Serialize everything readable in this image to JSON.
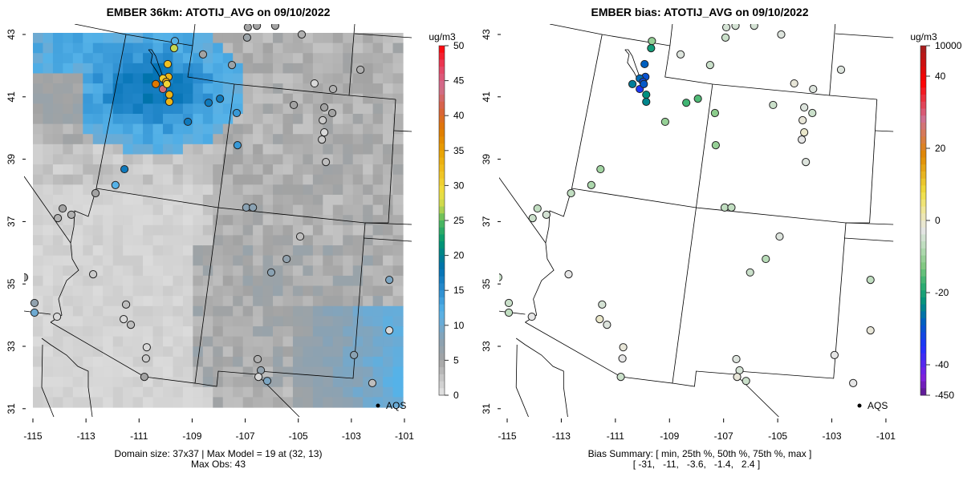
{
  "chart_data": [
    {
      "type": "heatmap",
      "title": "EMBER 36km: ATOTIJ_AVG on 09/10/2022",
      "x_ticks": [
        "-115",
        "-113",
        "-111",
        "-109",
        "-107",
        "-105",
        "-103",
        "-101"
      ],
      "y_ticks": [
        "43",
        "41",
        "39",
        "37",
        "35",
        "33",
        "31"
      ],
      "xlim": [
        -115.3,
        -100.5
      ],
      "ylim": [
        30.7,
        43.3
      ],
      "colorbar": {
        "units": "ug/m3",
        "ticks": [
          "50",
          "45",
          "40",
          "35",
          "30",
          "25",
          "20",
          "15",
          "10",
          "5",
          "0"
        ],
        "range": [
          0,
          50
        ]
      },
      "legend": {
        "label": "AQS",
        "placement": "bottom-right"
      },
      "footer": [
        "Domain size: 37x37 | Max Model = 19 at (32, 13)",
        "Max Obs: 43"
      ],
      "grid_size": [
        37,
        37
      ]
    },
    {
      "type": "scatter",
      "title": "EMBER bias: ATOTIJ_AVG on 09/10/2022",
      "x_ticks": [
        "-115",
        "-113",
        "-111",
        "-109",
        "-107",
        "-105",
        "-103",
        "-101"
      ],
      "y_ticks": [
        "43",
        "41",
        "39",
        "37",
        "35",
        "33",
        "31"
      ],
      "colorbar": {
        "units": "ug/m3",
        "ticks": [
          "10000",
          "40",
          "20",
          "0",
          "-20",
          "-40",
          "-450"
        ]
      },
      "legend": {
        "label": "AQS",
        "placement": "bottom-right"
      },
      "footer": [
        "Bias Summary: [ min, 25th %, 50th %, 75th %, max ]",
        "[ -31,   -11,   -3.6,   -1.4,   2.4 ]"
      ],
      "bias_summary": {
        "min": -31,
        "p25": -11,
        "p50": -3.6,
        "p75": -1.4,
        "max": 2.4
      }
    }
  ],
  "stations": [
    {
      "lon": -109.65,
      "lat": 42.79,
      "obs": 12,
      "bias": -8
    },
    {
      "lon": -109.68,
      "lat": 42.56,
      "obs": 27,
      "bias": -18
    },
    {
      "lon": -109.92,
      "lat": 42.05,
      "obs": 32,
      "bias": -25
    },
    {
      "lon": -109.89,
      "lat": 41.64,
      "obs": 33,
      "bias": -27
    },
    {
      "lon": -110.1,
      "lat": 41.59,
      "obs": 31,
      "bias": -24
    },
    {
      "lon": -109.98,
      "lat": 41.48,
      "obs": 34,
      "bias": -28
    },
    {
      "lon": -110.37,
      "lat": 41.41,
      "obs": 38,
      "bias": -22
    },
    {
      "lon": -110.1,
      "lat": 41.25,
      "obs": 43,
      "bias": -31
    },
    {
      "lon": -109.95,
      "lat": 41.41,
      "obs": 30,
      "bias": -26
    },
    {
      "lon": -109.86,
      "lat": 41.07,
      "obs": 33,
      "bias": -20
    },
    {
      "lon": -109.86,
      "lat": 40.84,
      "obs": 33,
      "bias": -21
    },
    {
      "lon": -108.38,
      "lat": 40.81,
      "obs": 17,
      "bias": -14
    },
    {
      "lon": -107.95,
      "lat": 40.94,
      "obs": 17,
      "bias": -13
    },
    {
      "lon": -109.16,
      "lat": 40.2,
      "obs": 17,
      "bias": -8
    },
    {
      "lon": -107.32,
      "lat": 40.48,
      "obs": 14,
      "bias": -9
    },
    {
      "lon": -107.29,
      "lat": 39.45,
      "obs": 14,
      "bias": -8
    },
    {
      "lon": -111.55,
      "lat": 38.68,
      "obs": 17,
      "bias": -7
    },
    {
      "lon": -111.89,
      "lat": 38.17,
      "obs": 12,
      "bias": -6
    },
    {
      "lon": -112.64,
      "lat": 37.91,
      "obs": 5,
      "bias": -4
    },
    {
      "lon": -113.88,
      "lat": 37.42,
      "obs": 5,
      "bias": -4
    },
    {
      "lon": -114.06,
      "lat": 37.11,
      "obs": 4,
      "bias": -3
    },
    {
      "lon": -113.55,
      "lat": 37.22,
      "obs": 4,
      "bias": -2
    },
    {
      "lon": -108.59,
      "lat": 42.36,
      "obs": 5,
      "bias": -1
    },
    {
      "lon": -107.5,
      "lat": 42.02,
      "obs": 6,
      "bias": -3
    },
    {
      "lon": -106.93,
      "lat": 42.9,
      "obs": 6,
      "bias": -3
    },
    {
      "lon": -106.9,
      "lat": 43.23,
      "obs": 5,
      "bias": -2
    },
    {
      "lon": -104.87,
      "lat": 43.0,
      "obs": 4,
      "bias": -1
    },
    {
      "lon": -102.66,
      "lat": 41.87,
      "obs": 4,
      "bias": -1
    },
    {
      "lon": -104.39,
      "lat": 41.43,
      "obs": 1,
      "bias": 1
    },
    {
      "lon": -103.69,
      "lat": 41.25,
      "obs": 4,
      "bias": -1
    },
    {
      "lon": -105.17,
      "lat": 40.74,
      "obs": 5,
      "bias": -3
    },
    {
      "lon": -104.02,
      "lat": 40.66,
      "obs": 5,
      "bias": -1
    },
    {
      "lon": -103.72,
      "lat": 40.48,
      "obs": 5,
      "bias": -3
    },
    {
      "lon": -104.08,
      "lat": 40.25,
      "obs": 2,
      "bias": 1
    },
    {
      "lon": -104.02,
      "lat": 39.86,
      "obs": 1,
      "bias": 2
    },
    {
      "lon": -104.11,
      "lat": 39.63,
      "obs": 2,
      "bias": 0
    },
    {
      "lon": -103.96,
      "lat": 38.91,
      "obs": 3,
      "bias": -1
    },
    {
      "lon": -106.96,
      "lat": 37.45,
      "obs": 8,
      "bias": -4
    },
    {
      "lon": -106.71,
      "lat": 37.45,
      "obs": 8,
      "bias": -4
    },
    {
      "lon": -104.93,
      "lat": 36.52,
      "obs": 3,
      "bias": -1
    },
    {
      "lon": -105.44,
      "lat": 35.8,
      "obs": 7,
      "bias": -5
    },
    {
      "lon": -106.02,
      "lat": 35.37,
      "obs": 8,
      "bias": -3
    },
    {
      "lon": -101.57,
      "lat": 35.13,
      "obs": 9,
      "bias": -4
    },
    {
      "lon": -101.57,
      "lat": 33.51,
      "obs": 1,
      "bias": 1
    },
    {
      "lon": -102.9,
      "lat": 32.72,
      "obs": 8,
      "bias": 0
    },
    {
      "lon": -102.21,
      "lat": 31.82,
      "obs": 3,
      "bias": 0
    },
    {
      "lon": -106.53,
      "lat": 32.59,
      "obs": 4,
      "bias": -1
    },
    {
      "lon": -106.41,
      "lat": 32.23,
      "obs": 7,
      "bias": -2
    },
    {
      "lon": -106.5,
      "lat": 32.02,
      "obs": 1,
      "bias": 1
    },
    {
      "lon": -106.17,
      "lat": 31.89,
      "obs": 9,
      "bias": -3
    },
    {
      "lon": -112.73,
      "lat": 35.31,
      "obs": 2,
      "bias": 0
    },
    {
      "lon": -111.49,
      "lat": 34.34,
      "obs": 3,
      "bias": -2
    },
    {
      "lon": -111.58,
      "lat": 33.87,
      "obs": 1,
      "bias": 2
    },
    {
      "lon": -111.31,
      "lat": 33.69,
      "obs": 3,
      "bias": -1
    },
    {
      "lon": -110.71,
      "lat": 32.97,
      "obs": 1,
      "bias": 1
    },
    {
      "lon": -110.74,
      "lat": 32.61,
      "obs": 2,
      "bias": 0
    },
    {
      "lon": -110.8,
      "lat": 32.02,
      "obs": 5,
      "bias": -3
    },
    {
      "lon": -114.94,
      "lat": 34.39,
      "obs": 7,
      "bias": -3
    },
    {
      "lon": -114.94,
      "lat": 34.08,
      "obs": 10,
      "bias": -4
    },
    {
      "lon": -114.09,
      "lat": 33.95,
      "obs": 1,
      "bias": 0
    },
    {
      "lon": -115.33,
      "lat": 35.21,
      "obs": 5,
      "bias": -3
    },
    {
      "lon": -106.56,
      "lat": 43.28,
      "obs": 5,
      "bias": -2
    },
    {
      "lon": -105.87,
      "lat": 43.28,
      "obs": 5,
      "bias": -2
    }
  ]
}
